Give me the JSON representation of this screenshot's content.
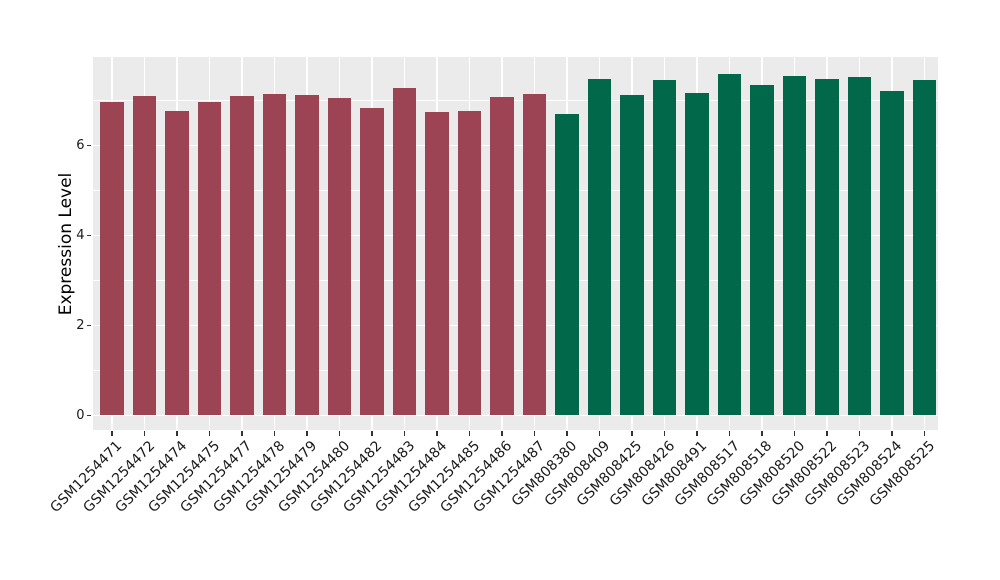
{
  "chart_data": {
    "type": "bar",
    "title": "",
    "xlabel": "",
    "ylabel": "Expression Level",
    "ylim": [
      0,
      7.97
    ],
    "yticks": [
      0,
      2,
      4,
      6
    ],
    "ytick_labels": [
      "0",
      "2",
      "4",
      "6"
    ],
    "yminor_gridlines": [
      1,
      3,
      5,
      7
    ],
    "legend_position": "none",
    "grid": "white major and minor gridlines on gray panel",
    "categories": [
      "GSM1254471",
      "GSM1254472",
      "GSM1254474",
      "GSM1254475",
      "GSM1254477",
      "GSM1254478",
      "GSM1254479",
      "GSM1254480",
      "GSM1254482",
      "GSM1254483",
      "GSM1254484",
      "GSM1254485",
      "GSM1254486",
      "GSM1254487",
      "GSM808380",
      "GSM808409",
      "GSM808425",
      "GSM808426",
      "GSM808491",
      "GSM808517",
      "GSM808518",
      "GSM808520",
      "GSM808522",
      "GSM808523",
      "GSM808524",
      "GSM808525"
    ],
    "values": [
      6.98,
      7.11,
      6.78,
      6.97,
      7.11,
      7.16,
      7.12,
      7.06,
      6.84,
      7.29,
      6.76,
      6.78,
      7.08,
      7.15,
      6.71,
      7.49,
      7.13,
      7.46,
      7.17,
      7.59,
      7.35,
      7.55,
      7.48,
      7.53,
      7.22,
      7.45
    ],
    "bar_colors": [
      "#9C4453",
      "#9C4453",
      "#9C4453",
      "#9C4453",
      "#9C4453",
      "#9C4453",
      "#9C4453",
      "#9C4453",
      "#9C4453",
      "#9C4453",
      "#9C4453",
      "#9C4453",
      "#9C4453",
      "#9C4453",
      "#016849",
      "#016849",
      "#016849",
      "#016849",
      "#016849",
      "#016849",
      "#016849",
      "#016849",
      "#016849",
      "#016849",
      "#016849",
      "#016849"
    ],
    "style": {
      "panel_background": "#EBEBEB",
      "gridline_color": "#FFFFFF",
      "outer_background": "#FFFFFF",
      "tick_mark_color": "#333333",
      "tick_label_color": "#1A1A1A"
    }
  }
}
